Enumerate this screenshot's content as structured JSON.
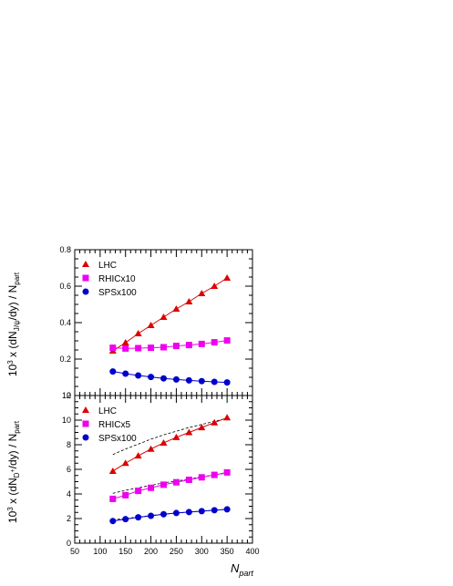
{
  "chart_data": [
    {
      "type": "line",
      "ylabel": "10^3 x (dN_J/ψ/dy) / N_part",
      "xlabel": "N_part",
      "xlim": [
        50,
        400
      ],
      "ylim": [
        0,
        0.8
      ],
      "yticks": [
        "0",
        "0.2",
        "0.4",
        "0.6",
        "0.8"
      ],
      "legend_position": "top-left",
      "series": [
        {
          "name": "LHC",
          "marker": "triangle",
          "color": "#dd0000",
          "x": [
            125,
            150,
            175,
            200,
            225,
            250,
            275,
            300,
            325,
            350
          ],
          "y": [
            0.245,
            0.29,
            0.34,
            0.385,
            0.43,
            0.475,
            0.515,
            0.56,
            0.6,
            0.645
          ]
        },
        {
          "name": "RHICx10",
          "marker": "square",
          "color": "#ee00ee",
          "x": [
            125,
            150,
            175,
            200,
            225,
            250,
            275,
            300,
            325,
            350
          ],
          "y": [
            0.262,
            0.258,
            0.26,
            0.262,
            0.265,
            0.272,
            0.277,
            0.283,
            0.292,
            0.302
          ]
        },
        {
          "name": "SPSx100",
          "marker": "circle",
          "color": "#0000cc",
          "x": [
            125,
            150,
            175,
            200,
            225,
            250,
            275,
            300,
            325,
            350
          ],
          "y": [
            0.132,
            0.12,
            0.11,
            0.102,
            0.094,
            0.088,
            0.083,
            0.079,
            0.075,
            0.072
          ]
        }
      ]
    },
    {
      "type": "line",
      "ylabel": "10^3 x (dN_D+/dy) / N_part",
      "xlabel": "N_part",
      "xlim": [
        50,
        400
      ],
      "ylim": [
        0,
        12
      ],
      "yticks": [
        "0",
        "2",
        "4",
        "6",
        "8",
        "10",
        "12"
      ],
      "xticks": [
        "50",
        "100",
        "150",
        "200",
        "250",
        "300",
        "350",
        "400"
      ],
      "legend_position": "top-left",
      "series": [
        {
          "name": "LHC",
          "marker": "triangle",
          "color": "#dd0000",
          "x": [
            125,
            150,
            175,
            200,
            225,
            250,
            275,
            300,
            325,
            350
          ],
          "y": [
            5.85,
            6.5,
            7.1,
            7.65,
            8.15,
            8.6,
            9.0,
            9.4,
            9.8,
            10.2
          ]
        },
        {
          "name": "RHICx5",
          "marker": "square",
          "color": "#ee00ee",
          "x": [
            125,
            150,
            175,
            200,
            225,
            250,
            275,
            300,
            325,
            350
          ],
          "y": [
            3.6,
            3.9,
            4.25,
            4.5,
            4.75,
            4.95,
            5.15,
            5.35,
            5.55,
            5.75
          ]
        },
        {
          "name": "SPSx100",
          "marker": "circle",
          "color": "#0000cc",
          "x": [
            125,
            150,
            175,
            200,
            225,
            250,
            275,
            300,
            325,
            350
          ],
          "y": [
            1.8,
            1.95,
            2.1,
            2.22,
            2.35,
            2.45,
            2.53,
            2.6,
            2.68,
            2.75
          ]
        }
      ],
      "dashed_curves": [
        {
          "x": [
            125,
            150,
            175,
            200,
            225,
            250,
            275,
            300,
            325,
            350
          ],
          "y": [
            7.2,
            7.65,
            8.05,
            8.45,
            8.8,
            9.1,
            9.4,
            9.65,
            9.9,
            10.15
          ]
        },
        {
          "x": [
            125,
            150,
            175,
            200,
            225,
            250,
            275,
            300,
            325,
            350
          ],
          "y": [
            4.05,
            4.3,
            4.5,
            4.7,
            4.9,
            5.05,
            5.2,
            5.4,
            5.55,
            5.7
          ]
        },
        {
          "x": [
            125,
            150,
            175,
            200,
            225,
            250,
            275,
            300,
            325,
            350
          ],
          "y": [
            1.9,
            2.0,
            2.12,
            2.25,
            2.35,
            2.45,
            2.53,
            2.6,
            2.68,
            2.75
          ]
        }
      ]
    }
  ]
}
